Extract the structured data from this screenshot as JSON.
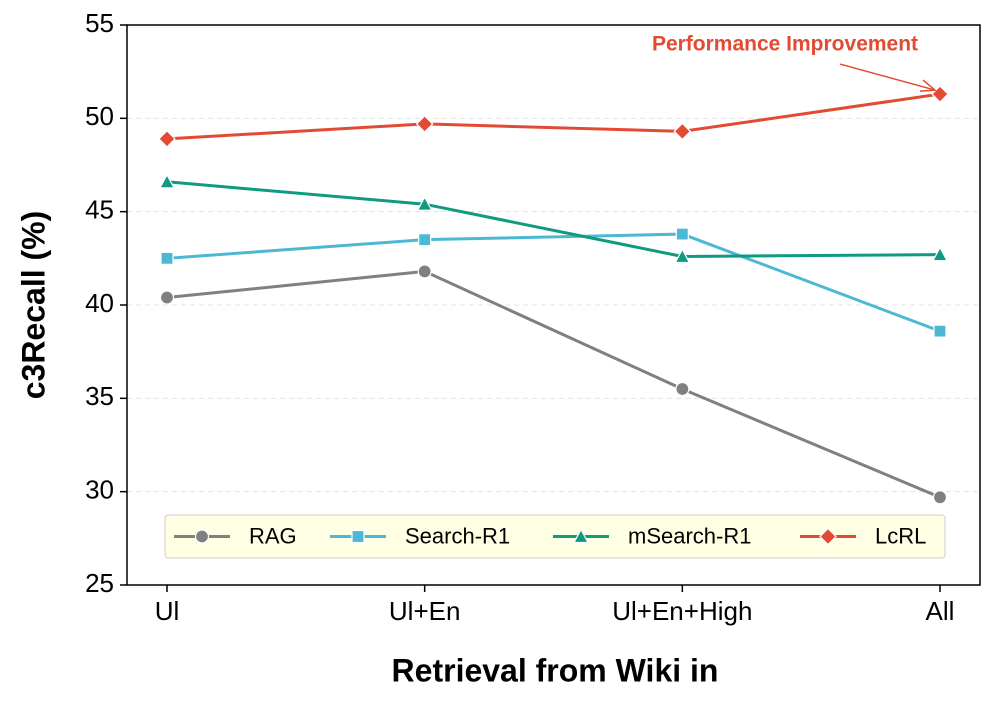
{
  "chart_data": {
    "type": "line",
    "xlabel": "Retrieval from Wiki in",
    "ylabel": "c3Recall (%)",
    "categories": [
      "Ul",
      "Ul+En",
      "Ul+En+High",
      "All"
    ],
    "series": [
      {
        "name": "RAG",
        "color": "#808080",
        "marker": "circle",
        "values": [
          40.4,
          41.8,
          35.5,
          29.7
        ]
      },
      {
        "name": "Search-R1",
        "color": "#4db8d4",
        "marker": "square",
        "values": [
          42.5,
          43.5,
          43.8,
          38.6
        ]
      },
      {
        "name": "mSearch-R1",
        "color": "#0e9b80",
        "marker": "triangle",
        "values": [
          46.6,
          45.4,
          42.6,
          42.7
        ]
      },
      {
        "name": "LcRL",
        "color": "#e24a33",
        "marker": "diamond",
        "values": [
          48.9,
          49.7,
          49.3,
          51.3
        ]
      }
    ],
    "ylim": [
      25,
      55
    ],
    "yticks": [
      25,
      30,
      35,
      40,
      45,
      50,
      55
    ],
    "grid": true,
    "legend": "lower center",
    "annotation": {
      "text": "Performance Improvement",
      "color": "#e24a33"
    }
  }
}
